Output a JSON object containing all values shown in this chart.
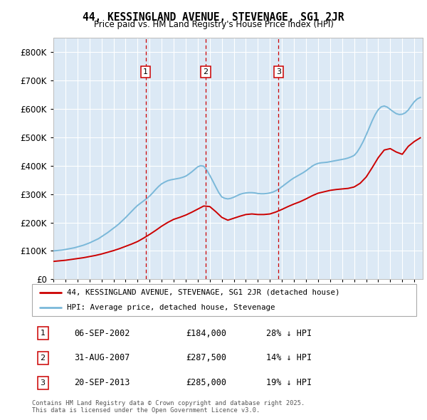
{
  "title": "44, KESSINGLAND AVENUE, STEVENAGE, SG1 2JR",
  "subtitle": "Price paid vs. HM Land Registry's House Price Index (HPI)",
  "hpi_color": "#7ab8d9",
  "price_color": "#cc0000",
  "plot_bg_color": "#dce9f5",
  "legend_line1": "44, KESSINGLAND AVENUE, STEVENAGE, SG1 2JR (detached house)",
  "legend_line2": "HPI: Average price, detached house, Stevenage",
  "transactions": [
    {
      "num": 1,
      "date": "06-SEP-2002",
      "price": 184000,
      "hpi_pct": "28% ↓ HPI",
      "year": 2002.67
    },
    {
      "num": 2,
      "date": "31-AUG-2007",
      "price": 287500,
      "hpi_pct": "14% ↓ HPI",
      "year": 2007.66
    },
    {
      "num": 3,
      "date": "20-SEP-2013",
      "price": 285000,
      "hpi_pct": "19% ↓ HPI",
      "year": 2013.72
    }
  ],
  "footer": "Contains HM Land Registry data © Crown copyright and database right 2025.\nThis data is licensed under the Open Government Licence v3.0.",
  "ylim": [
    0,
    850000
  ],
  "yticks": [
    0,
    100000,
    200000,
    300000,
    400000,
    500000,
    600000,
    700000,
    800000
  ],
  "xlim_start": 1995.0,
  "xlim_end": 2025.7,
  "hpi_data_years": [
    1995.0,
    1995.25,
    1995.5,
    1995.75,
    1996.0,
    1996.25,
    1996.5,
    1996.75,
    1997.0,
    1997.25,
    1997.5,
    1997.75,
    1998.0,
    1998.25,
    1998.5,
    1998.75,
    1999.0,
    1999.25,
    1999.5,
    1999.75,
    2000.0,
    2000.25,
    2000.5,
    2000.75,
    2001.0,
    2001.25,
    2001.5,
    2001.75,
    2002.0,
    2002.25,
    2002.5,
    2002.75,
    2003.0,
    2003.25,
    2003.5,
    2003.75,
    2004.0,
    2004.25,
    2004.5,
    2004.75,
    2005.0,
    2005.25,
    2005.5,
    2005.75,
    2006.0,
    2006.25,
    2006.5,
    2006.75,
    2007.0,
    2007.25,
    2007.5,
    2007.75,
    2008.0,
    2008.25,
    2008.5,
    2008.75,
    2009.0,
    2009.25,
    2009.5,
    2009.75,
    2010.0,
    2010.25,
    2010.5,
    2010.75,
    2011.0,
    2011.25,
    2011.5,
    2011.75,
    2012.0,
    2012.25,
    2012.5,
    2012.75,
    2013.0,
    2013.25,
    2013.5,
    2013.75,
    2014.0,
    2014.25,
    2014.5,
    2014.75,
    2015.0,
    2015.25,
    2015.5,
    2015.75,
    2016.0,
    2016.25,
    2016.5,
    2016.75,
    2017.0,
    2017.25,
    2017.5,
    2017.75,
    2018.0,
    2018.25,
    2018.5,
    2018.75,
    2019.0,
    2019.25,
    2019.5,
    2019.75,
    2020.0,
    2020.25,
    2020.5,
    2020.75,
    2021.0,
    2021.25,
    2021.5,
    2021.75,
    2022.0,
    2022.25,
    2022.5,
    2022.75,
    2023.0,
    2023.25,
    2023.5,
    2023.75,
    2024.0,
    2024.25,
    2024.5,
    2024.75,
    2025.0,
    2025.25,
    2025.5
  ],
  "hpi_data_values": [
    100000,
    101000,
    102000,
    103000,
    105000,
    107000,
    109000,
    111000,
    114000,
    117000,
    120000,
    124000,
    128000,
    133000,
    138000,
    143000,
    150000,
    157000,
    164000,
    172000,
    180000,
    188000,
    197000,
    207000,
    217000,
    228000,
    239000,
    250000,
    260000,
    268000,
    276000,
    284000,
    293000,
    304000,
    316000,
    327000,
    336000,
    342000,
    347000,
    350000,
    352000,
    354000,
    356000,
    359000,
    363000,
    370000,
    378000,
    387000,
    396000,
    400000,
    398000,
    384000,
    366000,
    346000,
    325000,
    305000,
    290000,
    285000,
    283000,
    285000,
    289000,
    294000,
    299000,
    302000,
    304000,
    305000,
    305000,
    304000,
    302000,
    301000,
    301000,
    302000,
    304000,
    307000,
    312000,
    318000,
    326000,
    334000,
    342000,
    350000,
    357000,
    363000,
    369000,
    375000,
    382000,
    390000,
    398000,
    404000,
    408000,
    410000,
    411000,
    412000,
    414000,
    416000,
    418000,
    420000,
    422000,
    424000,
    427000,
    431000,
    436000,
    448000,
    465000,
    485000,
    508000,
    533000,
    558000,
    580000,
    597000,
    607000,
    610000,
    606000,
    598000,
    590000,
    583000,
    580000,
    581000,
    586000,
    596000,
    611000,
    625000,
    635000,
    640000
  ],
  "price_data_years": [
    1995.0,
    1995.5,
    1996.0,
    1996.5,
    1997.0,
    1997.5,
    1998.0,
    1998.5,
    1999.0,
    1999.5,
    2000.0,
    2000.5,
    2001.0,
    2001.5,
    2002.0,
    2002.5,
    2003.0,
    2003.5,
    2004.0,
    2004.5,
    2005.0,
    2005.5,
    2006.0,
    2006.5,
    2007.0,
    2007.5,
    2008.0,
    2008.5,
    2009.0,
    2009.5,
    2010.0,
    2010.5,
    2011.0,
    2011.5,
    2012.0,
    2012.5,
    2013.0,
    2013.5,
    2014.0,
    2014.5,
    2015.0,
    2015.5,
    2016.0,
    2016.5,
    2017.0,
    2017.5,
    2018.0,
    2018.5,
    2019.0,
    2019.5,
    2020.0,
    2020.5,
    2021.0,
    2021.5,
    2022.0,
    2022.5,
    2023.0,
    2023.5,
    2024.0,
    2024.5,
    2025.0,
    2025.5
  ],
  "price_data_values": [
    63000,
    65000,
    67000,
    70000,
    73000,
    76000,
    80000,
    84000,
    89000,
    95000,
    101000,
    108000,
    116000,
    124000,
    133000,
    145000,
    158000,
    172000,
    187000,
    200000,
    211000,
    218000,
    226000,
    236000,
    247000,
    258000,
    256000,
    238000,
    218000,
    208000,
    215000,
    222000,
    228000,
    230000,
    228000,
    228000,
    230000,
    237000,
    246000,
    256000,
    265000,
    273000,
    283000,
    294000,
    303000,
    308000,
    313000,
    316000,
    318000,
    320000,
    325000,
    338000,
    360000,
    393000,
    428000,
    455000,
    460000,
    448000,
    440000,
    468000,
    485000,
    498000
  ]
}
